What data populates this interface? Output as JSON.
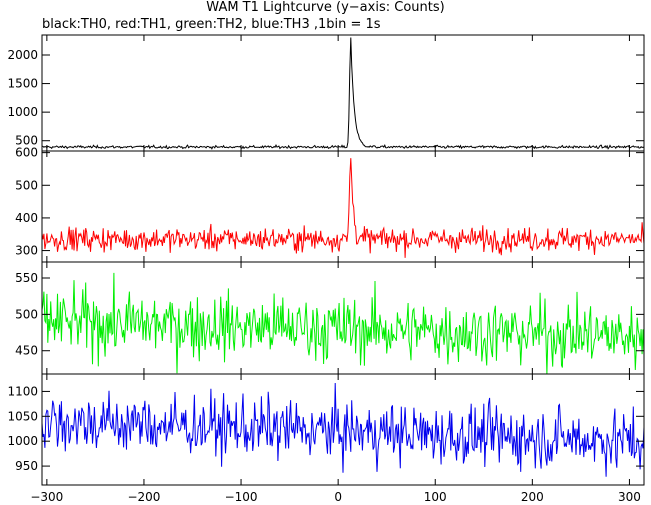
{
  "title": "WAM T1 Lightcurve (y−axis: Counts)",
  "subtitle": "black:TH0, red:TH1, green:TH2, blue:TH3 ,1bin = 1s",
  "chart_data": [
    {
      "type": "line",
      "name": "TH0",
      "color": "#000000",
      "x_range": [
        -305,
        315
      ],
      "ylim": [
        320,
        2350
      ],
      "yticks": [
        500,
        1000,
        1500,
        2000
      ],
      "baseline": 390,
      "noise": 12,
      "burst": {
        "peak_x": 13,
        "peak_value": 2300,
        "rise": 1.2,
        "decay": 3.5
      }
    },
    {
      "type": "line",
      "name": "TH1",
      "color": "#ff0000",
      "x_range": [
        -305,
        315
      ],
      "ylim": [
        265,
        605
      ],
      "yticks": [
        300,
        400,
        500,
        600
      ],
      "baseline": 335,
      "noise": 18,
      "burst": {
        "peak_x": 13,
        "peak_value": 600,
        "rise": 1.2,
        "decay": 2.5
      }
    },
    {
      "type": "line",
      "name": "TH2",
      "color": "#00ee00",
      "x_range": [
        -305,
        315
      ],
      "ylim": [
        418,
        572
      ],
      "yticks": [
        450,
        500,
        550
      ],
      "baseline_start": 490,
      "baseline_end": 470,
      "noise": 22
    },
    {
      "type": "line",
      "name": "TH3",
      "color": "#0000ee",
      "x_range": [
        -305,
        315
      ],
      "ylim": [
        912,
        1135
      ],
      "yticks": [
        950,
        1000,
        1050,
        1100
      ],
      "baseline_start": 1040,
      "baseline_end": 1000,
      "noise": 30
    }
  ],
  "x_axis": {
    "ticks": [
      -300,
      -200,
      -100,
      0,
      100,
      200,
      300
    ]
  }
}
